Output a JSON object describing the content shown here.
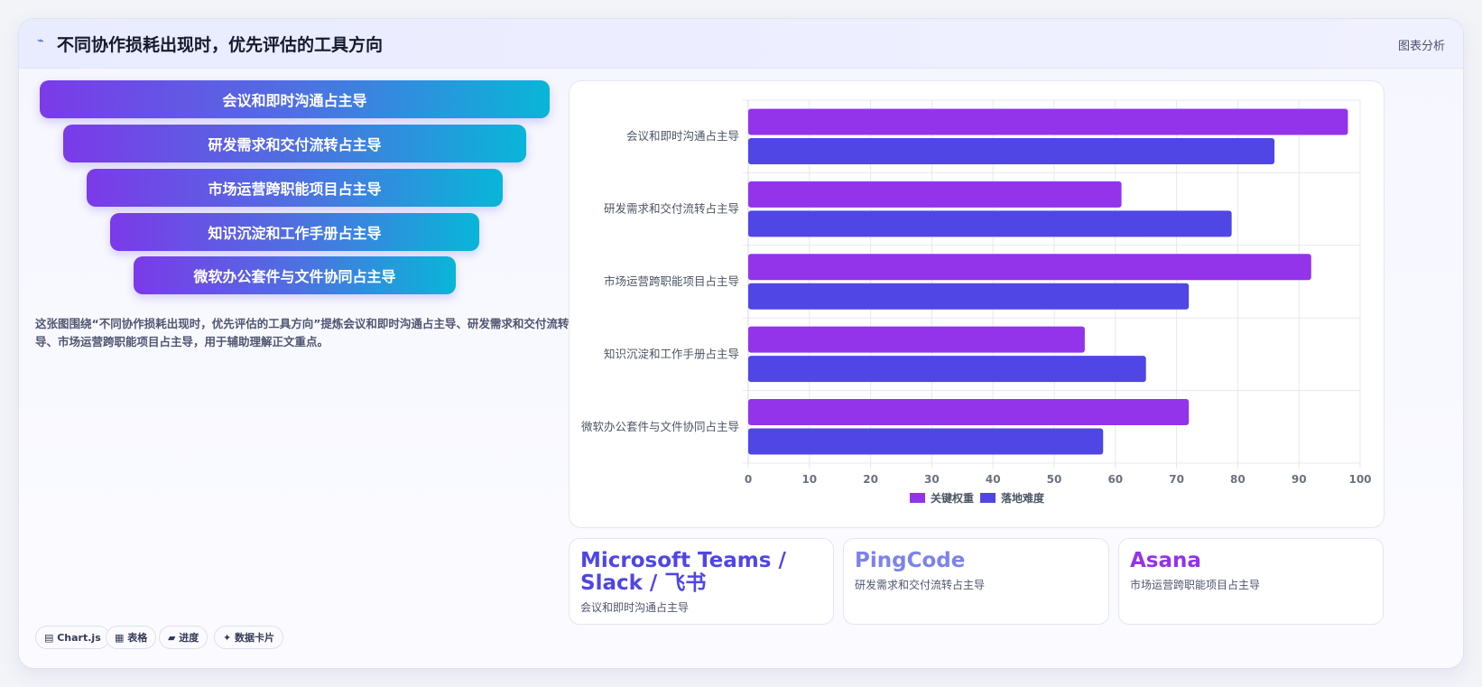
{
  "header": {
    "icon": "line-chart-icon",
    "title": "不同协作损耗出现时，优先评估的工具方向",
    "tag": "图表分析"
  },
  "funnel": [
    "会议和即时沟通占主导",
    "研发需求和交付流转占主导",
    "市场运营跨职能项目占主导",
    "知识沉淀和工作手册占主导",
    "微软办公套件与文件协同占主导"
  ],
  "description": "这张图围绕“不同协作损耗出现时，优先评估的工具方向”提炼会议和即时沟通占主导、研发需求和交付流转占主导、市场运营跨职能项目占主导，用于辅助理解正文重点。",
  "chips": [
    {
      "icon": "chart-icon",
      "label": "Chart.js"
    },
    {
      "icon": "table-icon",
      "label": "表格"
    },
    {
      "icon": "progress-icon",
      "label": "进度"
    },
    {
      "icon": "sparkle-icon",
      "label": "数据卡片"
    }
  ],
  "chart_data": {
    "type": "bar",
    "orientation": "horizontal",
    "categories": [
      "会议和即时沟通占主导",
      "研发需求和交付流转占主导",
      "市场运营跨职能项目占主导",
      "知识沉淀和工作手册占主导",
      "微软办公套件与文件协同占主导"
    ],
    "series": [
      {
        "name": "关键权重",
        "color": "#9333ea",
        "values": [
          98,
          61,
          92,
          55,
          72
        ]
      },
      {
        "name": "落地难度",
        "color": "#4f46e5",
        "values": [
          86,
          79,
          72,
          65,
          58
        ]
      }
    ],
    "xlim": [
      0,
      100
    ],
    "x_ticks": [
      0,
      10,
      20,
      30,
      40,
      50,
      60,
      70,
      80,
      90,
      100
    ],
    "grid": true,
    "legend": "bottom-center"
  },
  "tools": [
    {
      "name_line1": "Microsoft Teams /",
      "name_line2": "Slack / 飞书",
      "sub": "会议和即时沟通占主导",
      "color": "#4f46e5"
    },
    {
      "name_line1": "PingCode",
      "name_line2": "",
      "sub": "研发需求和交付流转占主导",
      "color": "#7c83ea"
    },
    {
      "name_line1": "Asana",
      "name_line2": "",
      "sub": "市场运营跨职能项目占主导",
      "color": "#9333ea"
    }
  ]
}
